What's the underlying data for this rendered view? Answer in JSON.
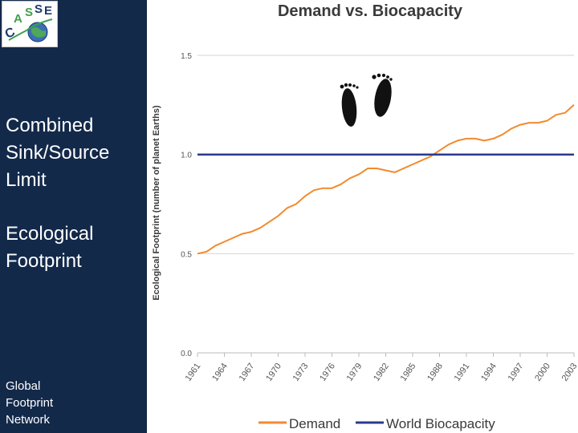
{
  "sidebar": {
    "logo_text": "CASSE",
    "heading1": [
      "Combined",
      "Sink/Source",
      "Limit"
    ],
    "heading2": [
      "Ecological",
      "Footprint"
    ],
    "credit": [
      "Global",
      "Footprint",
      "Network"
    ]
  },
  "colors": {
    "sidebar_bg": "#13294a",
    "demand": "#f28a2e",
    "biocapacity": "#2b3a8f",
    "text_dark": "#333333"
  },
  "chart_data": {
    "type": "line",
    "title": "Demand vs. Biocapacity",
    "xlabel": "",
    "ylabel": "Ecological Footprint (number of planet Earths)",
    "ylim": [
      0,
      1.5
    ],
    "yticks": [
      0.0,
      0.5,
      1.0,
      1.5
    ],
    "ytick_labels": [
      "0.0",
      "0.5",
      "1.0",
      "1.5"
    ],
    "xlim": [
      1961,
      2003
    ],
    "xticks": [
      1961,
      1964,
      1967,
      1970,
      1973,
      1976,
      1979,
      1982,
      1985,
      1988,
      1991,
      1994,
      1997,
      2000,
      2003
    ],
    "series": [
      {
        "name": "Demand",
        "x": [
          1961,
          1962,
          1963,
          1964,
          1965,
          1966,
          1967,
          1968,
          1969,
          1970,
          1971,
          1972,
          1973,
          1974,
          1975,
          1976,
          1977,
          1978,
          1979,
          1980,
          1981,
          1982,
          1983,
          1984,
          1985,
          1986,
          1987,
          1988,
          1989,
          1990,
          1991,
          1992,
          1993,
          1994,
          1995,
          1996,
          1997,
          1998,
          1999,
          2000,
          2001,
          2002,
          2003
        ],
        "values": [
          0.5,
          0.51,
          0.54,
          0.56,
          0.58,
          0.6,
          0.61,
          0.63,
          0.66,
          0.69,
          0.73,
          0.75,
          0.79,
          0.82,
          0.83,
          0.83,
          0.85,
          0.88,
          0.9,
          0.93,
          0.93,
          0.92,
          0.91,
          0.93,
          0.95,
          0.97,
          0.99,
          1.02,
          1.05,
          1.07,
          1.08,
          1.08,
          1.07,
          1.08,
          1.1,
          1.13,
          1.15,
          1.16,
          1.16,
          1.17,
          1.2,
          1.21,
          1.25
        ]
      },
      {
        "name": "World Biocapacity",
        "x": [
          1961,
          2003
        ],
        "values": [
          1.0,
          1.0
        ]
      }
    ],
    "legend": [
      "Demand",
      "World Biocapacity"
    ],
    "legend_position": "bottom",
    "grid": "horizontal"
  }
}
